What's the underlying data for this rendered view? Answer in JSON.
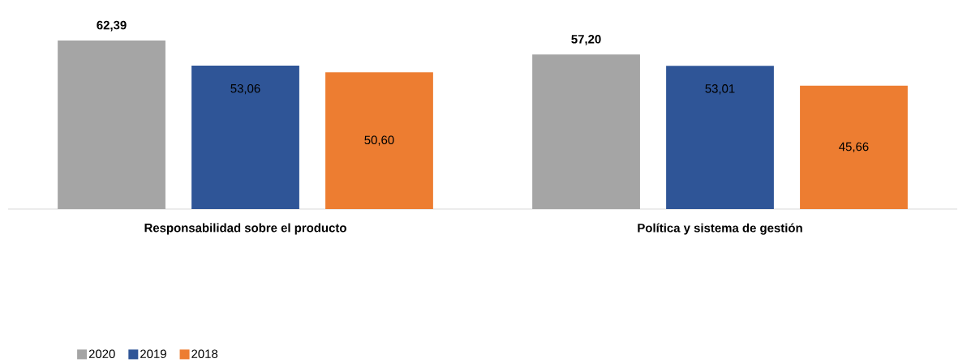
{
  "chart_data": {
    "type": "bar",
    "categories": [
      "Responsabilidad sobre el producto",
      "Política y sistema de gestión"
    ],
    "series": [
      {
        "name": "2020",
        "color": "#a5a5a5",
        "values": [
          62.39,
          57.2
        ],
        "value_labels": [
          "62,39",
          "57,20"
        ]
      },
      {
        "name": "2019",
        "color": "#2f5597",
        "values": [
          53.06,
          53.01
        ],
        "value_labels": [
          "53,06",
          "53,01"
        ]
      },
      {
        "name": "2018",
        "color": "#ed7d31",
        "values": [
          50.6,
          45.66
        ],
        "value_labels": [
          "50,60",
          "45,66"
        ]
      }
    ],
    "legend": "bottom left"
  }
}
